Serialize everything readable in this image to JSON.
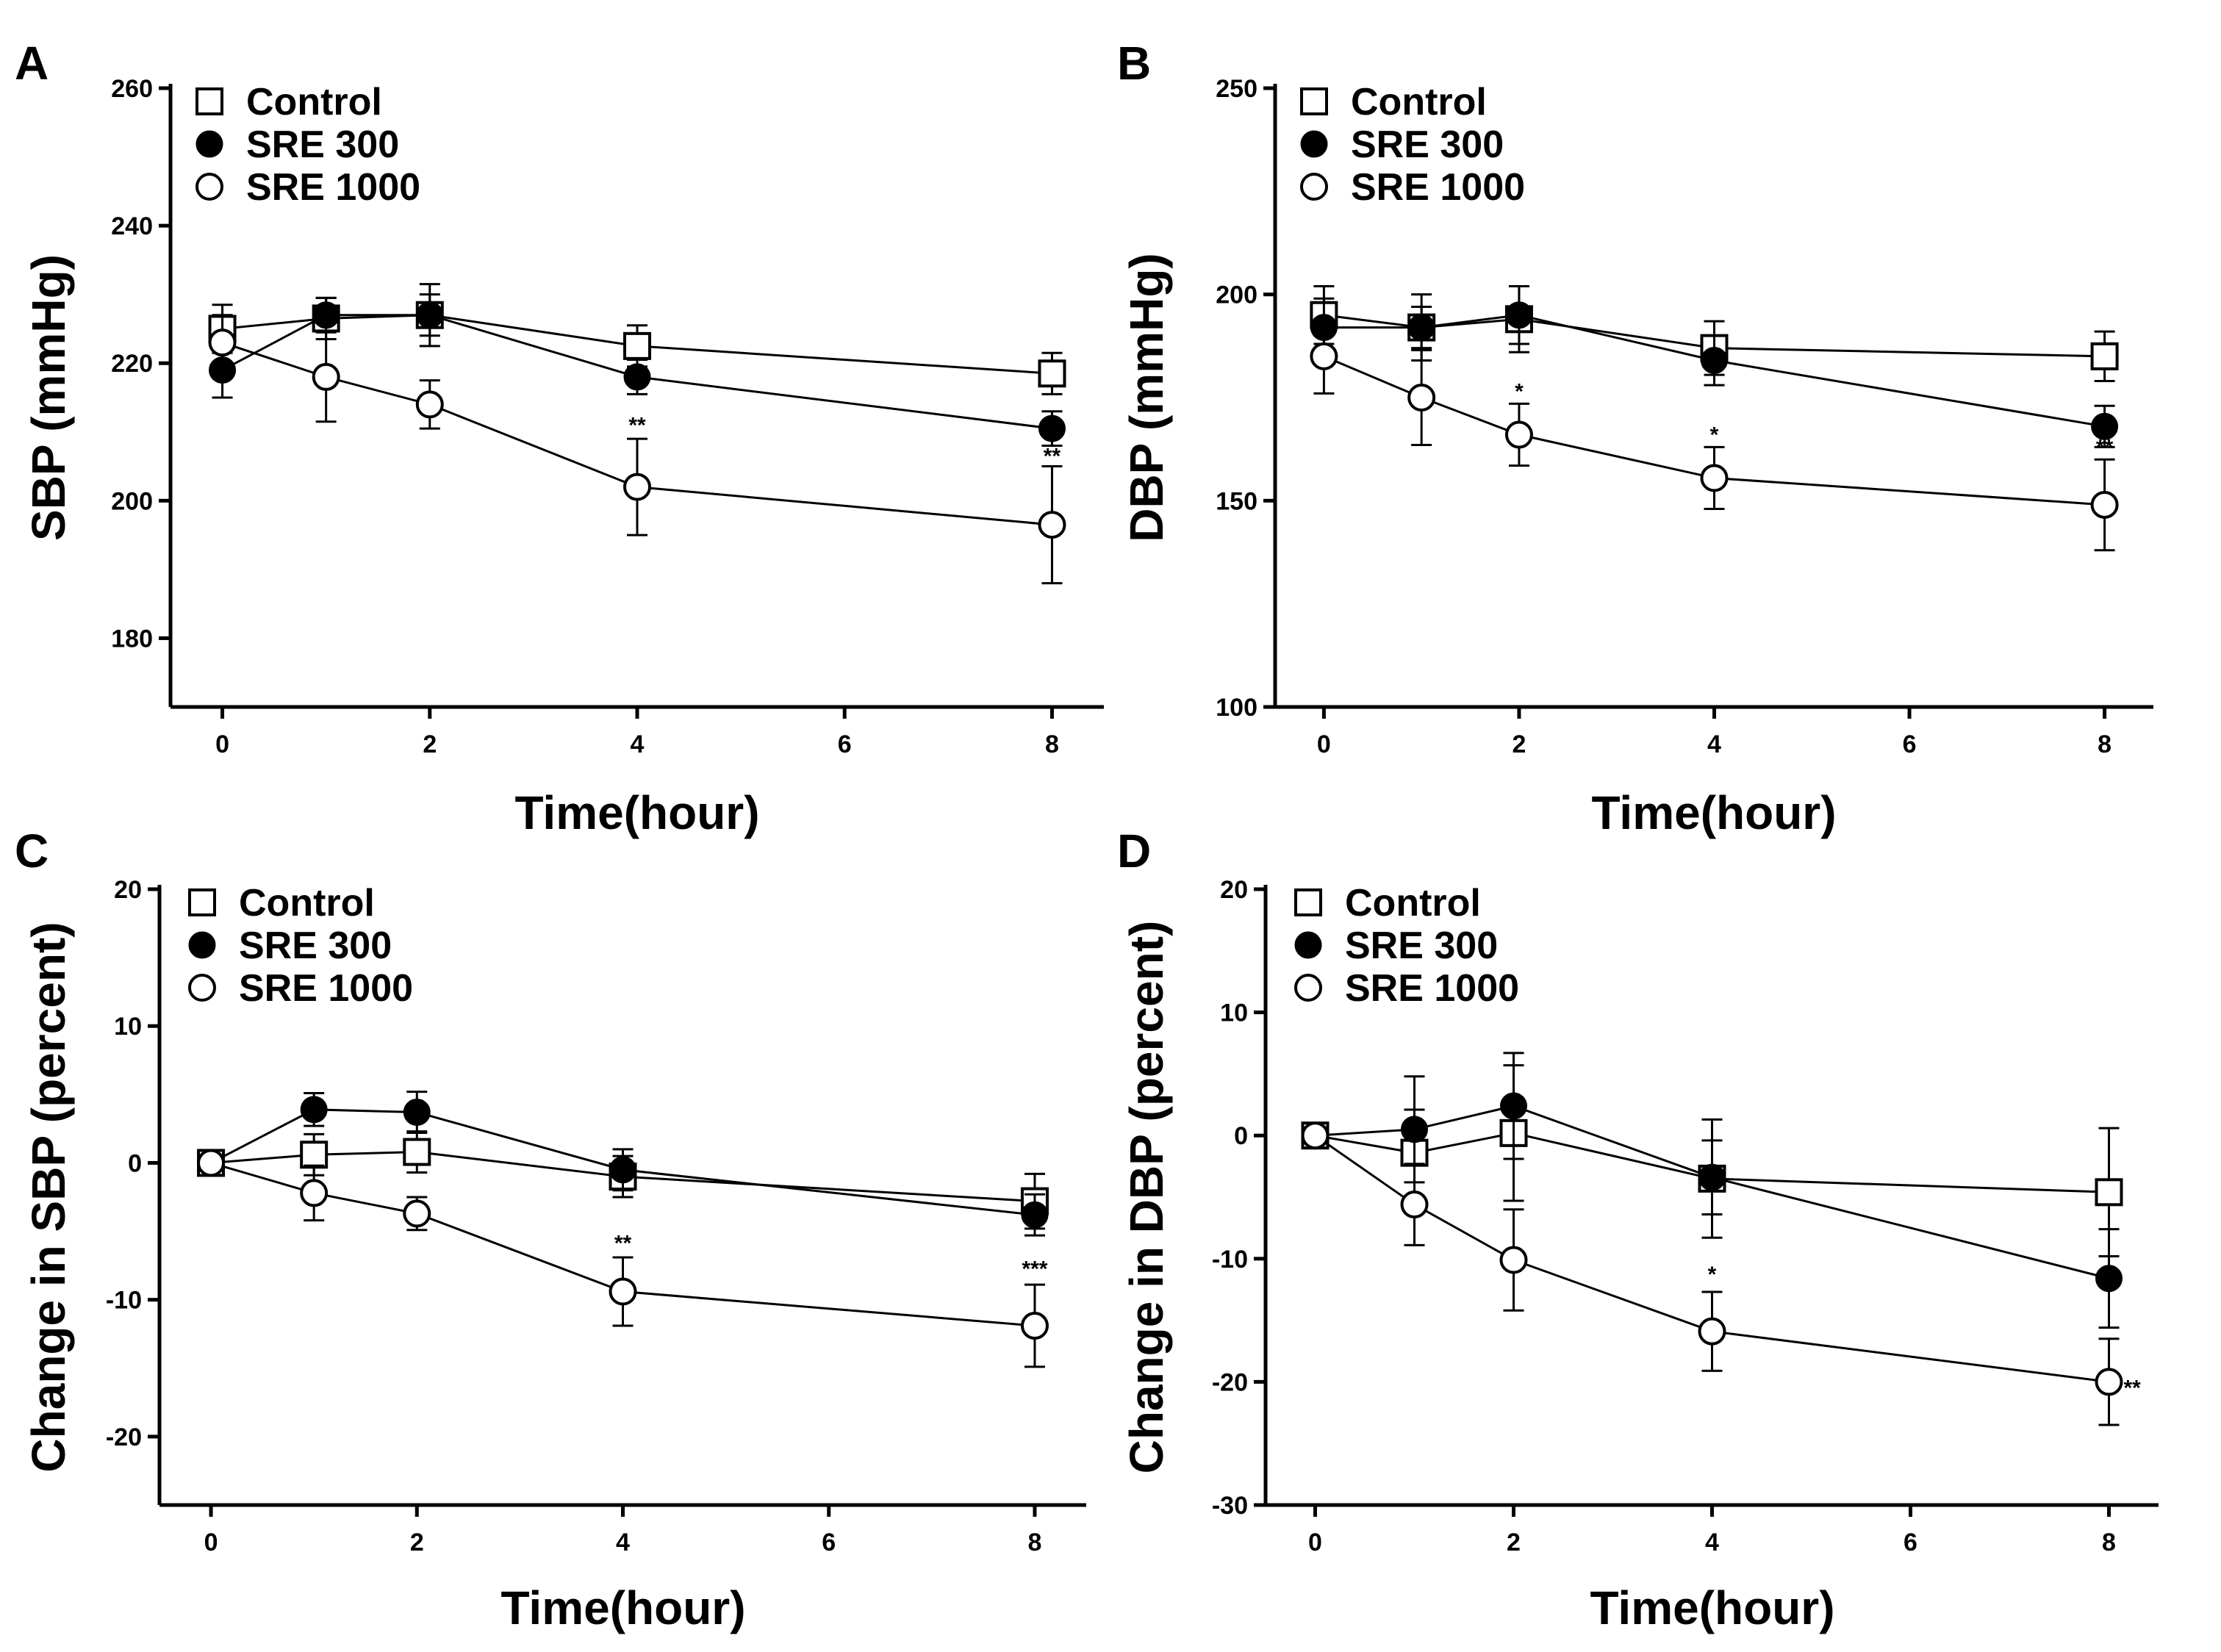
{
  "chart_data": [
    {
      "type": "line",
      "panel": "A",
      "xlabel": "Time(hour)",
      "ylabel": "SBP (mmHg)",
      "x": [
        0,
        1,
        2,
        4,
        8
      ],
      "xticks": [
        0,
        2,
        4,
        6,
        8
      ],
      "xlim": [
        -0.5,
        8.5
      ],
      "ylim": [
        170,
        260
      ],
      "yticks": [
        180,
        200,
        220,
        240,
        260
      ],
      "legend": "top-left",
      "series": [
        {
          "name": "Control",
          "marker": "open-square",
          "values": [
            225,
            226.5,
            227,
            222.5,
            218.5
          ],
          "errors": [
            3.5,
            3,
            3,
            3,
            3
          ]
        },
        {
          "name": "SRE 300",
          "marker": "filled-circle",
          "values": [
            219,
            227,
            227,
            218,
            210.5
          ],
          "errors": [
            4,
            2.5,
            4.5,
            2.5,
            2.5
          ]
        },
        {
          "name": "SRE 1000",
          "marker": "open-circle",
          "values": [
            223,
            218,
            214,
            202,
            196.5
          ],
          "errors": [
            4,
            6.5,
            3.5,
            7,
            8.5
          ]
        }
      ],
      "annotations": [
        {
          "x": 4,
          "y": 209.5,
          "text": "**"
        },
        {
          "x": 8,
          "y": 205,
          "text": "**"
        }
      ]
    },
    {
      "type": "line",
      "panel": "B",
      "xlabel": "Time(hour)",
      "ylabel": "DBP (mmHg)",
      "x": [
        0,
        1,
        2,
        4,
        8
      ],
      "xticks": [
        0,
        2,
        4,
        6,
        8
      ],
      "xlim": [
        -0.5,
        8.5
      ],
      "ylim": [
        100,
        250
      ],
      "yticks": [
        100,
        150,
        200,
        250
      ],
      "legend": "top-left",
      "series": [
        {
          "name": "Control",
          "marker": "open-square",
          "values": [
            195,
            192,
            194,
            187,
            185
          ],
          "errors": [
            7,
            8,
            8,
            6.5,
            6
          ]
        },
        {
          "name": "SRE 300",
          "marker": "filled-circle",
          "values": [
            192,
            192,
            195,
            184,
            168
          ],
          "errors": [
            7,
            5,
            7,
            6,
            5
          ]
        },
        {
          "name": "SRE 1000",
          "marker": "open-circle",
          "values": [
            185,
            175,
            166,
            155.5,
            149
          ],
          "errors": [
            9,
            11.5,
            7.5,
            7.5,
            11
          ]
        }
      ],
      "annotations": [
        {
          "x": 2,
          "y": 174,
          "text": "*"
        },
        {
          "x": 4,
          "y": 163.5,
          "text": "*"
        },
        {
          "x": 8,
          "y": 160.5,
          "text": "**"
        }
      ]
    },
    {
      "type": "line",
      "panel": "C",
      "xlabel": "Time(hour)",
      "ylabel": "Change in SBP (percent)",
      "x": [
        0,
        1,
        2,
        4,
        8
      ],
      "xticks": [
        0,
        2,
        4,
        6,
        8
      ],
      "xlim": [
        -0.5,
        8.5
      ],
      "ylim": [
        -25,
        20
      ],
      "yticks": [
        -20,
        -10,
        0,
        10,
        20
      ],
      "legend": "top-left",
      "series": [
        {
          "name": "Control",
          "marker": "open-square",
          "values": [
            0,
            0.6,
            0.8,
            -1,
            -2.8
          ],
          "errors": [
            0.5,
            1.5,
            1.5,
            1.5,
            2
          ]
        },
        {
          "name": "SRE 300",
          "marker": "filled-circle",
          "values": [
            0,
            3.9,
            3.7,
            -0.5,
            -3.8
          ],
          "errors": [
            0.5,
            1.2,
            1.5,
            1.5,
            1.5
          ]
        },
        {
          "name": "SRE 1000",
          "marker": "open-circle",
          "values": [
            0,
            -2.2,
            -3.7,
            -9.4,
            -11.9
          ],
          "errors": [
            0.5,
            2,
            1.2,
            2.5,
            3
          ]
        }
      ],
      "annotations": [
        {
          "x": 4,
          "y": -6.6,
          "text": "**"
        },
        {
          "x": 8,
          "y": -8.5,
          "text": "***"
        }
      ]
    },
    {
      "type": "line",
      "panel": "D",
      "xlabel": "Time(hour)",
      "ylabel": "Change in DBP (percent)",
      "x": [
        0,
        1,
        2,
        4,
        8
      ],
      "xticks": [
        0,
        2,
        4,
        6,
        8
      ],
      "xlim": [
        -0.5,
        8.5
      ],
      "ylim": [
        -30,
        20
      ],
      "yticks": [
        -30,
        -20,
        -10,
        0,
        10,
        20
      ],
      "legend": "top-left",
      "series": [
        {
          "name": "Control",
          "marker": "open-square",
          "values": [
            0,
            -1.4,
            0.2,
            -3.5,
            -4.6
          ],
          "errors": [
            0.5,
            3.5,
            5.5,
            4.8,
            5.2
          ]
        },
        {
          "name": "SRE 300",
          "marker": "filled-circle",
          "values": [
            0,
            0.5,
            2.4,
            -3.4,
            -11.6
          ],
          "errors": [
            0.5,
            4.3,
            4.3,
            3,
            4
          ]
        },
        {
          "name": "SRE 1000",
          "marker": "open-circle",
          "values": [
            0,
            -5.6,
            -10.1,
            -15.9,
            -20
          ],
          "errors": [
            0.5,
            3.3,
            4.1,
            3.2,
            3.5
          ]
        }
      ],
      "annotations": [
        {
          "x": 4,
          "y": -12.1,
          "text": "*"
        },
        {
          "x": 8,
          "y": -20,
          "text": "**",
          "side": "right"
        }
      ]
    }
  ]
}
